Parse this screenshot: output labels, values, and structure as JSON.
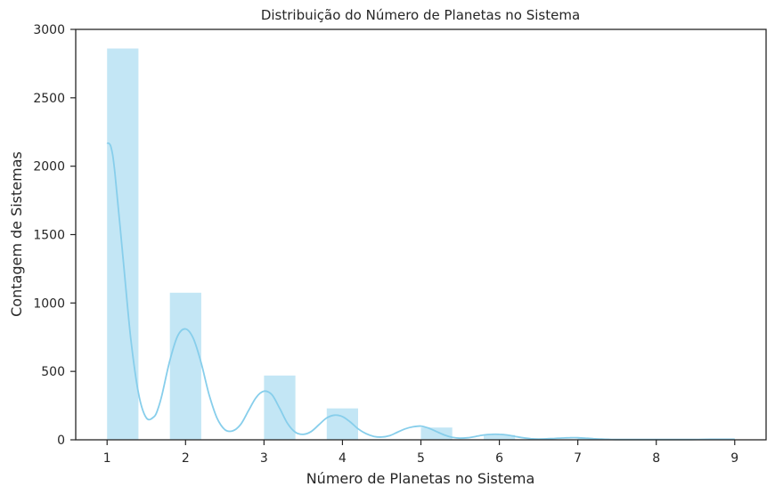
{
  "chart_data": {
    "type": "bar",
    "title": "Distribuição do Número de Planetas no Sistema",
    "xlabel": "Número de Planetas no Sistema",
    "ylabel": "Contagem de Sistemas",
    "xlim": [
      0.6,
      9.4
    ],
    "ylim": [
      0,
      3000
    ],
    "xticks": [
      1,
      2,
      3,
      4,
      5,
      6,
      7,
      8,
      9
    ],
    "yticks": [
      0,
      500,
      1000,
      1500,
      2000,
      2500,
      3000
    ],
    "bars": [
      {
        "x0": 1.0,
        "x1": 1.4,
        "count": 2860
      },
      {
        "x0": 1.8,
        "x1": 2.2,
        "count": 1075
      },
      {
        "x0": 3.0,
        "x1": 3.4,
        "count": 470
      },
      {
        "x0": 3.8,
        "x1": 4.2,
        "count": 230
      },
      {
        "x0": 5.0,
        "x1": 5.4,
        "count": 90
      },
      {
        "x0": 5.8,
        "x1": 6.2,
        "count": 35
      },
      {
        "x0": 7.0,
        "x1": 7.4,
        "count": 10
      },
      {
        "x0": 7.8,
        "x1": 8.2,
        "count": 3
      },
      {
        "x0": 8.6,
        "x1": 9.0,
        "count": 4
      }
    ],
    "kde": {
      "x": [
        1.0,
        1.05,
        1.1,
        1.2,
        1.3,
        1.4,
        1.5,
        1.6,
        1.65,
        1.7,
        1.8,
        1.9,
        2.0,
        2.1,
        2.2,
        2.3,
        2.4,
        2.5,
        2.6,
        2.7,
        2.8,
        2.9,
        3.0,
        3.1,
        3.2,
        3.3,
        3.4,
        3.5,
        3.6,
        3.7,
        3.8,
        3.9,
        4.0,
        4.1,
        4.2,
        4.3,
        4.4,
        4.5,
        4.6,
        4.7,
        4.8,
        4.9,
        5.0,
        5.1,
        5.2,
        5.3,
        5.4,
        5.5,
        5.6,
        5.7,
        5.8,
        5.9,
        6.0,
        6.1,
        6.2,
        6.3,
        6.4,
        6.5,
        6.6,
        6.7,
        6.8,
        6.9,
        7.0,
        7.1,
        7.2,
        7.3,
        7.4,
        7.5,
        7.6,
        7.8,
        8.0,
        8.2,
        8.4,
        8.6,
        8.8,
        9.0
      ],
      "y": [
        2170,
        2140,
        1950,
        1350,
        750,
        340,
        160,
        170,
        230,
        330,
        580,
        760,
        810,
        740,
        560,
        330,
        160,
        75,
        65,
        110,
        210,
        310,
        355,
        330,
        230,
        120,
        55,
        40,
        60,
        110,
        160,
        180,
        170,
        130,
        80,
        45,
        25,
        20,
        30,
        55,
        80,
        95,
        100,
        85,
        60,
        35,
        18,
        12,
        15,
        25,
        35,
        40,
        40,
        35,
        25,
        15,
        8,
        6,
        7,
        10,
        13,
        15,
        15,
        12,
        8,
        5,
        3,
        2,
        2,
        2,
        2,
        2,
        2,
        3,
        4,
        4
      ]
    },
    "colors": {
      "bar": "#87ceeb",
      "line": "#87ceeb",
      "axis": "#262626"
    },
    "grid": false,
    "legend": "none"
  }
}
